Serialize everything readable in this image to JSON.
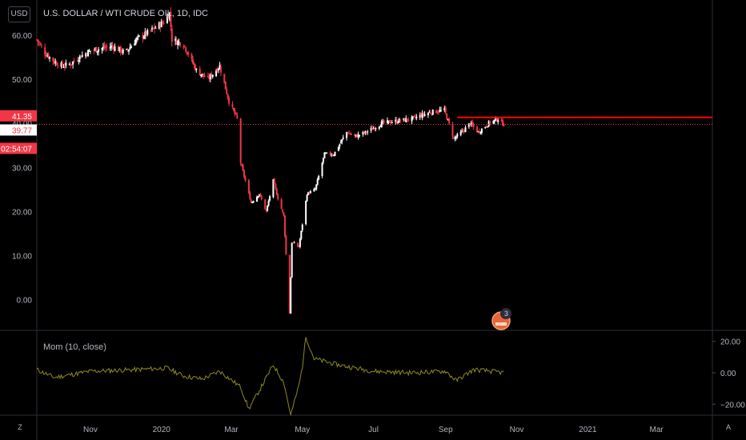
{
  "header": {
    "symbol_title": "U.S. DOLLAR / WTI CRUDE OIL, 1D, IDC"
  },
  "controls": {
    "currency": "USD",
    "zoom_icon_label": "Z",
    "auto_scale_label": "A"
  },
  "price_axis": {
    "ticks": [
      "60.00",
      "50.00",
      "40.00",
      "30.00",
      "20.00",
      "10.00",
      "0.00"
    ]
  },
  "price_labels": {
    "high_line": "41.35",
    "last_price": "39.77",
    "countdown": "02:54:07"
  },
  "time_axis": {
    "ticks": [
      "Nov",
      "2020",
      "Mar",
      "May",
      "Jul",
      "Sep",
      "Nov",
      "2021",
      "Mar"
    ]
  },
  "indicator": {
    "title": "Mom (10, close)",
    "ticks": [
      "20.00",
      "0.00",
      "−20.00"
    ]
  },
  "event_badge": {
    "count": "3"
  },
  "colors": {
    "up": "#ffffff",
    "down": "#f23645",
    "momentum": "#8b8b1f",
    "level": "#ff0000"
  },
  "chart_data": {
    "type": "candlestick",
    "title": "U.S. DOLLAR / WTI CRUDE OIL, 1D, IDC",
    "ylim": [
      -7,
      68
    ],
    "date_range": [
      "2019-09-16",
      "2021-04-18"
    ],
    "horizontal_level": 41.35,
    "last_price": 39.77,
    "close_path": [
      [
        "2019-09-16",
        59
      ],
      [
        "2019-09-23",
        56
      ],
      [
        "2019-10-01",
        54
      ],
      [
        "2019-10-08",
        53
      ],
      [
        "2019-10-15",
        53.5
      ],
      [
        "2019-10-22",
        55
      ],
      [
        "2019-11-01",
        56.5
      ],
      [
        "2019-11-10",
        57
      ],
      [
        "2019-11-20",
        57.5
      ],
      [
        "2019-12-01",
        56
      ],
      [
        "2019-12-10",
        59
      ],
      [
        "2019-12-20",
        60.5
      ],
      [
        "2020-01-03",
        63
      ],
      [
        "2020-01-08",
        65
      ],
      [
        "2020-01-10",
        59
      ],
      [
        "2020-01-20",
        58
      ],
      [
        "2020-01-31",
        52
      ],
      [
        "2020-02-10",
        50
      ],
      [
        "2020-02-20",
        53
      ],
      [
        "2020-02-28",
        45
      ],
      [
        "2020-03-06",
        41
      ],
      [
        "2020-03-09",
        31
      ],
      [
        "2020-03-18",
        22
      ],
      [
        "2020-03-25",
        24
      ],
      [
        "2020-03-31",
        20
      ],
      [
        "2020-04-06",
        27
      ],
      [
        "2020-04-10",
        23
      ],
      [
        "2020-04-15",
        19
      ],
      [
        "2020-04-20",
        -3
      ],
      [
        "2020-04-22",
        13
      ],
      [
        "2020-04-28",
        12
      ],
      [
        "2020-05-05",
        24
      ],
      [
        "2020-05-12",
        25
      ],
      [
        "2020-05-20",
        33
      ],
      [
        "2020-05-28",
        33
      ],
      [
        "2020-06-08",
        38
      ],
      [
        "2020-06-15",
        37
      ],
      [
        "2020-06-25",
        38
      ],
      [
        "2020-07-08",
        40
      ],
      [
        "2020-07-20",
        40.5
      ],
      [
        "2020-08-03",
        41
      ],
      [
        "2020-08-18",
        42.5
      ],
      [
        "2020-08-31",
        43
      ],
      [
        "2020-09-08",
        36.5
      ],
      [
        "2020-09-15",
        38
      ],
      [
        "2020-09-22",
        40
      ],
      [
        "2020-09-29",
        38
      ],
      [
        "2020-10-08",
        40
      ],
      [
        "2020-10-16",
        41
      ],
      [
        "2020-10-21",
        39.77
      ]
    ],
    "momentum": {
      "name": "Mom (10, close)",
      "ylim": [
        -27,
        27
      ],
      "values": [
        [
          "2019-09-16",
          2
        ],
        [
          "2019-10-01",
          -3
        ],
        [
          "2019-11-01",
          1
        ],
        [
          "2019-12-10",
          2
        ],
        [
          "2020-01-06",
          3
        ],
        [
          "2020-01-20",
          -2
        ],
        [
          "2020-02-05",
          -4
        ],
        [
          "2020-02-20",
          1
        ],
        [
          "2020-03-09",
          -9
        ],
        [
          "2020-03-16",
          -23
        ],
        [
          "2020-03-26",
          -10
        ],
        [
          "2020-04-06",
          5
        ],
        [
          "2020-04-15",
          -6
        ],
        [
          "2020-04-21",
          -27
        ],
        [
          "2020-04-28",
          -8
        ],
        [
          "2020-05-01",
          4
        ],
        [
          "2020-05-04",
          23
        ],
        [
          "2020-05-11",
          9
        ],
        [
          "2020-06-01",
          5
        ],
        [
          "2020-07-01",
          1
        ],
        [
          "2020-08-01",
          0
        ],
        [
          "2020-09-01",
          1
        ],
        [
          "2020-09-10",
          -5
        ],
        [
          "2020-09-25",
          2
        ],
        [
          "2020-10-10",
          1
        ],
        [
          "2020-10-21",
          0
        ]
      ]
    }
  }
}
